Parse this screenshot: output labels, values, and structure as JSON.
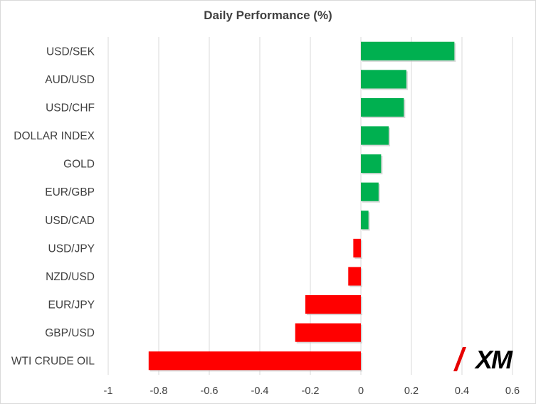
{
  "chart_data": {
    "type": "bar",
    "orientation": "horizontal",
    "title": "Daily Performance (%)",
    "xlabel": "",
    "ylabel": "",
    "categories": [
      "USD/SEK",
      "AUD/USD",
      "USD/CHF",
      "DOLLAR INDEX",
      "GOLD",
      "EUR/GBP",
      "USD/CAD",
      "USD/JPY",
      "NZD/USD",
      "EUR/JPY",
      "GBP/USD",
      "WTI CRUDE OIL"
    ],
    "values": [
      0.37,
      0.18,
      0.17,
      0.11,
      0.08,
      0.07,
      0.03,
      -0.03,
      -0.05,
      -0.22,
      -0.26,
      -0.84
    ],
    "xlim": [
      -1,
      0.6
    ],
    "xticks": [
      -1,
      -0.8,
      -0.6,
      -0.4,
      -0.2,
      0,
      0.2,
      0.4,
      0.6
    ],
    "xtick_labels": [
      "-1",
      "-0.8",
      "-0.6",
      "-0.4",
      "-0.2",
      "0",
      "0.2",
      "0.4",
      "0.6"
    ],
    "grid": "vertical",
    "colors": {
      "positive": "#00b050",
      "negative": "#ff0000",
      "grid": "#d9d9d9",
      "text": "#404040"
    }
  },
  "logo": {
    "text": "XM",
    "name": "xm-logo"
  }
}
